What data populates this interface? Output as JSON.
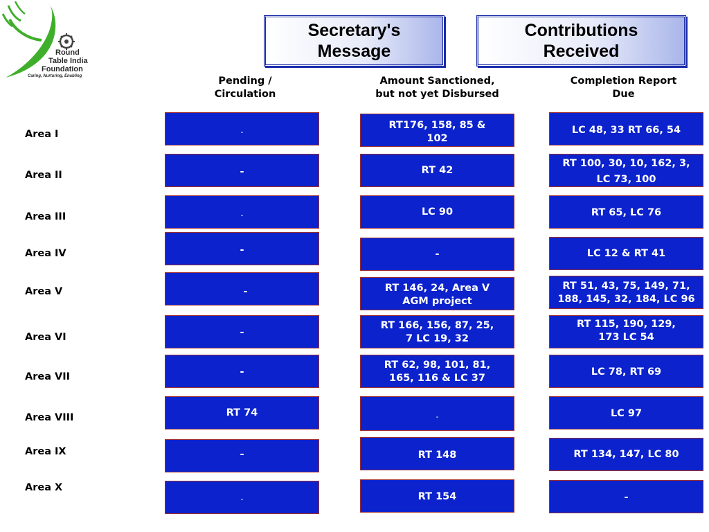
{
  "logo": {
    "line1": "Round",
    "line2": "Table India",
    "line3": "Foundation",
    "tagline": "Caring, Nurturing, Enabling"
  },
  "header_buttons": {
    "secretary": "Secretary's\nMessage",
    "contributions": "Contributions\nReceived"
  },
  "columns": [
    "Pending /\nCirculation",
    "Amount Sanctioned,\nbut not yet Disbursed",
    "Completion Report\nDue"
  ],
  "rows": [
    {
      "area": "Area I",
      "pending": "-",
      "sanctioned": "RT176, 158, 85 &\n102",
      "completion": "LC 48, 33 RT 66, 54"
    },
    {
      "area": "Area II",
      "pending": "-",
      "sanctioned": "RT 42",
      "completion": "RT 100, 30, 10, 162, 3,\nLC 73, 100"
    },
    {
      "area": "Area III",
      "pending": "-",
      "sanctioned": "LC 90",
      "completion": "RT 65, LC 76"
    },
    {
      "area": "Area IV",
      "pending": "-",
      "sanctioned": "-",
      "completion": "LC 12 & RT 41"
    },
    {
      "area": "Area V",
      "pending": "-",
      "sanctioned": "RT 146, 24, Area V\nAGM project",
      "completion": "RT 51, 43, 75, 149, 71,\n188, 145, 32, 184, LC 96"
    },
    {
      "area": "Area VI",
      "pending": "-",
      "sanctioned": "RT 166, 156, 87, 25,\n7 LC 19, 32",
      "completion": "RT 115, 190, 129,\n173 LC 54"
    },
    {
      "area": "Area VII",
      "pending": "-",
      "sanctioned": "RT 62, 98, 101, 81,\n165, 116 & LC 37",
      "completion": "LC 78, RT 69"
    },
    {
      "area": "Area VIII",
      "pending": "RT 74",
      "sanctioned": "-",
      "completion": "LC 97"
    },
    {
      "area": "Area IX",
      "pending": "-",
      "sanctioned": "RT 148",
      "completion": "RT 134, 147, LC 80"
    },
    {
      "area": "Area X",
      "pending": "-",
      "sanctioned": "RT 154",
      "completion": "-"
    }
  ],
  "colors": {
    "cell_fill": "#0b22cc",
    "cell_border": "#a03030",
    "logo_green": "#3fae2a"
  }
}
